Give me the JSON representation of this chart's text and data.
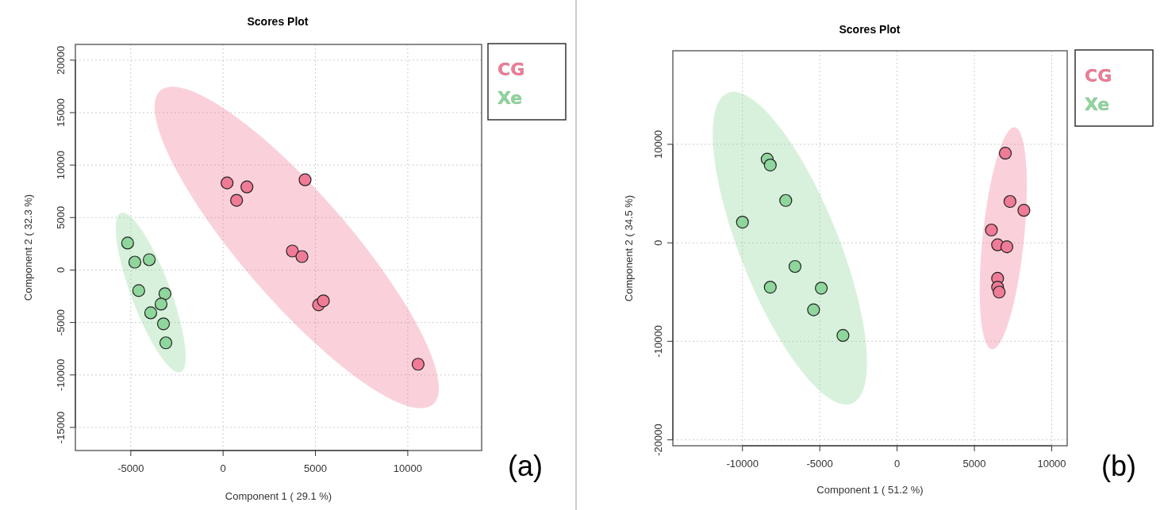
{
  "chart_data": [
    {
      "type": "scatter",
      "title": "Scores Plot",
      "xlabel": "Component 1 ( 29.1 %)",
      "ylabel": "Component 2 ( 32.3 %)",
      "annotations": [
        "(a)"
      ],
      "xlim": [
        -8000,
        14000
      ],
      "ylim": [
        -17200,
        21500
      ],
      "xticks": [
        -5000,
        0,
        5000,
        10000
      ],
      "yticks": [
        -15000,
        -10000,
        -5000,
        0,
        5000,
        10000,
        15000,
        20000
      ],
      "grid": true,
      "legend": "top right",
      "marker": "circle",
      "series": [
        {
          "name": "CG",
          "color": "#f07b96",
          "x": [
            215,
            730,
            1290,
            4440,
            3750,
            4270,
            5170,
            5430,
            10560
          ],
          "values": [
            8300,
            6640,
            7920,
            8600,
            1810,
            1280,
            -3320,
            -2940,
            -8980
          ]
        },
        {
          "name": "Xe",
          "color": "#8fd69c",
          "x": [
            -5170,
            -4780,
            -4000,
            -4570,
            -3150,
            -3360,
            -3920,
            -3230,
            -3100
          ],
          "values": [
            2570,
            750,
            980,
            -1960,
            -2260,
            -3250,
            -4080,
            -5130,
            -6940
          ]
        }
      ]
    },
    {
      "type": "scatter",
      "title": "Scores Plot",
      "xlabel": "Component 1 ( 51.2 %)",
      "ylabel": "Component 2 ( 34.5 %)",
      "annotations": [
        "(b)"
      ],
      "xlim": [
        -14500,
        11000
      ],
      "ylim": [
        -20600,
        19500
      ],
      "xticks": [
        -10000,
        -5000,
        0,
        5000,
        10000
      ],
      "yticks": [
        -20000,
        -10000,
        0,
        10000
      ],
      "grid": true,
      "legend": "top right",
      "marker": "circle",
      "series": [
        {
          "name": "CG",
          "color": "#f07b96",
          "x": [
            7000,
            7300,
            8200,
            6100,
            6500,
            7100,
            6500,
            6500,
            6600
          ],
          "values": [
            9100,
            4200,
            3300,
            1300,
            -200,
            -400,
            -3600,
            -4500,
            -5000
          ]
        },
        {
          "name": "Xe",
          "color": "#8fd69c",
          "x": [
            -8400,
            -8200,
            -7200,
            -10000,
            -6600,
            -8200,
            -4900,
            -5400,
            -3500
          ],
          "values": [
            8500,
            7900,
            4300,
            2100,
            -2400,
            -4500,
            -4600,
            -6800,
            -9400
          ]
        }
      ]
    }
  ]
}
